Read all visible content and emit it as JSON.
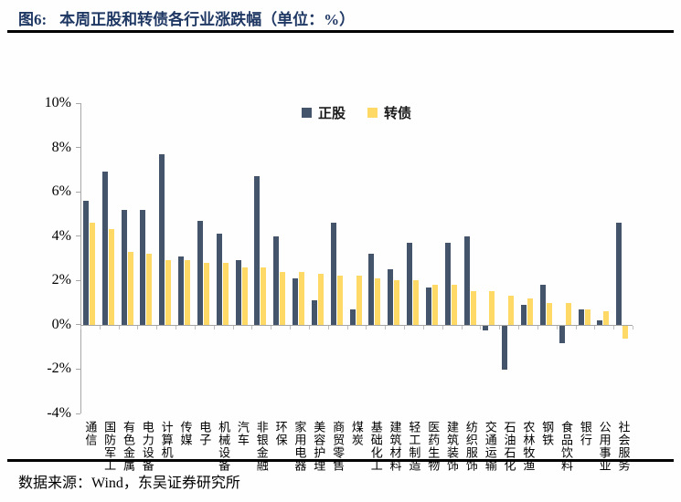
{
  "figure": {
    "label": "图6:",
    "title": "本周正股和转债各行业涨跌幅（单位：%）",
    "source": "数据来源：Wind，东吴证券研究所"
  },
  "colors": {
    "stock": "#44546A",
    "bond": "#FFD966",
    "title_text": "#1F3864",
    "axis_line": "#A6A6A6",
    "tick": "#BFBFBF"
  },
  "chart_data": {
    "type": "bar",
    "title": "本周正股和转债各行业涨跌幅（单位：%）",
    "categories": [
      "通信",
      "国防军工",
      "有色金属",
      "电力设备",
      "计算机",
      "传媒",
      "电子",
      "机械设备",
      "汽车",
      "非银金融",
      "环保",
      "家用电器",
      "美容护理",
      "商贸零售",
      "煤炭",
      "基础化工",
      "建筑材料",
      "轻工制造",
      "医药生物",
      "建筑装饰",
      "纺织服饰",
      "交通运输",
      "石油石化",
      "农林牧渔",
      "钢铁",
      "食品饮料",
      "银行",
      "公用事业",
      "社会服务"
    ],
    "series": [
      {
        "name": "正股",
        "key": "stock",
        "color": "#44546A",
        "values": [
          5.6,
          6.9,
          5.2,
          5.2,
          7.7,
          3.1,
          4.7,
          4.1,
          2.9,
          6.7,
          4.0,
          2.1,
          1.1,
          4.6,
          0.7,
          3.2,
          2.5,
          3.7,
          1.7,
          3.7,
          4.0,
          -0.2,
          -2.0,
          0.9,
          1.8,
          -0.8,
          0.7,
          0.2,
          4.6
        ]
      },
      {
        "name": "转债",
        "key": "bond",
        "color": "#FFD966",
        "values": [
          4.6,
          4.3,
          3.3,
          3.2,
          2.9,
          2.9,
          2.8,
          2.8,
          2.6,
          2.6,
          2.4,
          2.4,
          2.3,
          2.2,
          2.2,
          2.1,
          2.0,
          2.0,
          1.8,
          1.8,
          1.5,
          1.5,
          1.3,
          1.2,
          1.0,
          1.0,
          0.7,
          0.6,
          -0.6
        ]
      }
    ],
    "xlabel": "",
    "ylabel": "",
    "ylim": [
      -4,
      10
    ],
    "ytick_step": 2,
    "ytick_labels": [
      "10%",
      "8%",
      "6%",
      "4%",
      "2%",
      "0%",
      "-2%",
      "-4%"
    ],
    "grid": false,
    "legend_position": "top-center"
  }
}
